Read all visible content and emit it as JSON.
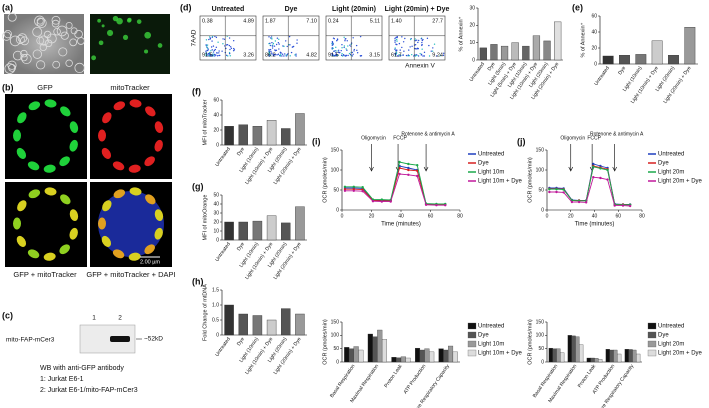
{
  "panels": {
    "a": "(a)",
    "b": "(b)",
    "c": "(c)",
    "d": "(d)"
  },
  "microscopy": {
    "gfp": "GFP",
    "mito": "mitoTracker",
    "merge": "GFP + mitoTracker",
    "merge_dapi": "GFP + mitoTracker + DAPI",
    "scale": "2.00 µm"
  },
  "western": {
    "label": "mito-FAP-mCer3",
    "lanes": [
      "1",
      "2"
    ],
    "size": "~52kD",
    "caption": [
      "WB with anti-GFP antibody",
      "1: Jurkat E6-1",
      "2: Jurkat E6-1/mito-FAP-mCer3"
    ]
  },
  "flow": {
    "y_label": "7AAD",
    "x_label": "Annexin V",
    "plots": [
      {
        "title": "Untreated",
        "quadrants": [
          "0.38",
          "4.89",
          "91.5",
          "3.26"
        ]
      },
      {
        "title": "Dye",
        "quadrants": [
          "1.87",
          "7.10",
          "86.2",
          "4.82"
        ]
      },
      {
        "title": "Light (20min)",
        "quadrants": [
          "0.24",
          "5.11",
          "91.5",
          "3.15"
        ]
      },
      {
        "title": "Light (20min) + Dye",
        "quadrants": [
          "1.40",
          "27.7",
          "61.7",
          "9.24"
        ]
      }
    ]
  },
  "chart_data": [
    {
      "type": "bar",
      "y_label": "% of Annexin⁺",
      "categories": [
        "Untreated",
        "Dye",
        "Light (5min)",
        "Light (5min) + Dye",
        "Light (10min)",
        "Light (10min) + Dye",
        "Light (20min)",
        "Light (20min) + Dye"
      ],
      "values": [
        7,
        9,
        8,
        10,
        8,
        14,
        11,
        22
      ],
      "colors": [
        "#555555",
        "#777777",
        "#999999",
        "#bbbbbb",
        "#666666",
        "#aaaaaa",
        "#888888",
        "#e0e0e0"
      ],
      "ylim": [
        0,
        30
      ],
      "yticks": [
        0,
        10,
        20,
        30
      ]
    },
    {
      "type": "bar",
      "label": "(e)",
      "y_label": "% of Annexin⁺",
      "categories": [
        "Untreated",
        "Dye",
        "Light (10min)",
        "Light (10min) + Dye",
        "Light (20min)",
        "Light (20min) + Dye"
      ],
      "values": [
        10,
        11,
        12,
        29,
        11,
        46
      ],
      "colors": [
        "#333333",
        "#555555",
        "#777777",
        "#cccccc",
        "#555555",
        "#999999"
      ],
      "ylim": [
        0,
        60
      ],
      "yticks": [
        0,
        20,
        40,
        60
      ]
    },
    {
      "type": "bar",
      "label": "(f)",
      "y_label": "MFI of mitoTracker",
      "categories": [
        "Untreated",
        "Dye",
        "Light (10min)",
        "Light (10min) + Dye",
        "Light (20min)",
        "Light (20min) + Dye"
      ],
      "values": [
        25,
        27,
        25,
        33,
        22,
        42
      ],
      "colors": [
        "#333333",
        "#555555",
        "#777777",
        "#cccccc",
        "#555555",
        "#999999"
      ],
      "ylim": [
        0,
        60
      ],
      "yticks": [
        0,
        20,
        40,
        60
      ]
    },
    {
      "type": "bar",
      "label": "(g)",
      "y_label": "MFI of mitoOrange",
      "categories": [
        "Untreated",
        "Dye",
        "Light (10min)",
        "Light (10min) + Dye",
        "Light (20min)",
        "Light (20min) + Dye"
      ],
      "values": [
        20,
        20,
        21,
        27,
        19,
        37
      ],
      "colors": [
        "#333333",
        "#555555",
        "#777777",
        "#cccccc",
        "#555555",
        "#999999"
      ],
      "ylim": [
        0,
        50
      ],
      "yticks": [
        0,
        10,
        20,
        30,
        40,
        50
      ]
    },
    {
      "type": "bar",
      "label": "(h)",
      "y_label": "Fold Change of mtDNA",
      "categories": [
        "Untreated",
        "Dye",
        "Light (10min)",
        "Light (10min) + Dye",
        "Light (20min)",
        "Light (20min) + Dye"
      ],
      "values": [
        1,
        0.7,
        0.65,
        0.5,
        0.88,
        0.7
      ],
      "colors": [
        "#333333",
        "#555555",
        "#777777",
        "#cccccc",
        "#555555",
        "#999999"
      ],
      "ylim": [
        0,
        1.5
      ],
      "yticks": [
        0,
        0.5,
        {
          "value": 1,
          "label": "1.0"
        },
        1.5
      ]
    },
    {
      "type": "line",
      "label": "(i)",
      "y_label": "OCR (pmoles/min)",
      "x_label": "Time (minutes)",
      "x": [
        2,
        8,
        14,
        21,
        27,
        33,
        39,
        45,
        51,
        57,
        64,
        70
      ],
      "xlim": [
        0,
        80
      ],
      "xticks": [
        0,
        20,
        40,
        60,
        80
      ],
      "ylim": [
        0,
        150
      ],
      "yticks": [
        0,
        50,
        100,
        150
      ],
      "annotations": [
        {
          "text": "Oligomycin",
          "x": 20
        },
        {
          "text": "FCCP",
          "x": 38
        },
        {
          "text": "Rotenone & antimycin A",
          "x": 57
        }
      ],
      "series": [
        {
          "name": "Untreated",
          "color": "#1f3fbf",
          "values": [
            55,
            55,
            54,
            25,
            24,
            24,
            110,
            105,
            100,
            15,
            14,
            14
          ]
        },
        {
          "name": "Dye",
          "color": "#d62020",
          "values": [
            52,
            52,
            51,
            24,
            23,
            23,
            105,
            100,
            98,
            14,
            13,
            13
          ]
        },
        {
          "name": "Light 10m",
          "color": "#1aa84a",
          "values": [
            58,
            58,
            57,
            26,
            26,
            25,
            120,
            115,
            112,
            16,
            15,
            15
          ]
        },
        {
          "name": "Light 10m + Dye",
          "color": "#c0189a",
          "values": [
            48,
            48,
            47,
            22,
            21,
            21,
            90,
            88,
            85,
            13,
            12,
            12
          ]
        }
      ]
    },
    {
      "type": "line",
      "label": "(j)",
      "y_label": "OCR (pmoles/min)",
      "x_label": "Time (minutes)",
      "x": [
        2,
        8,
        14,
        21,
        27,
        33,
        39,
        45,
        51,
        57,
        64,
        70
      ],
      "xlim": [
        0,
        80
      ],
      "xticks": [
        0,
        20,
        40,
        60,
        80
      ],
      "ylim": [
        0,
        150
      ],
      "yticks": [
        0,
        50,
        100,
        150
      ],
      "annotations": [
        {
          "text": "Oligomycin",
          "x": 20
        },
        {
          "text": "FCCP",
          "x": 38
        },
        {
          "text": "Rotenone & antimycin A",
          "x": 57
        }
      ],
      "series": [
        {
          "name": "Untreated",
          "color": "#1f3fbf",
          "values": [
            55,
            55,
            54,
            25,
            24,
            24,
            115,
            110,
            105,
            15,
            14,
            14
          ]
        },
        {
          "name": "Dye",
          "color": "#d62020",
          "values": [
            53,
            53,
            52,
            24,
            24,
            23,
            110,
            106,
            102,
            14,
            14,
            13
          ]
        },
        {
          "name": "Light 20m",
          "color": "#1aa84a",
          "values": [
            52,
            52,
            51,
            24,
            23,
            23,
            108,
            104,
            100,
            14,
            13,
            13
          ]
        },
        {
          "name": "Light 20m + Dye",
          "color": "#c0189a",
          "values": [
            45,
            45,
            44,
            20,
            20,
            19,
            82,
            80,
            76,
            11,
            11,
            10
          ]
        }
      ]
    },
    {
      "type": "bar",
      "y_label": "OCR (pmoles/min)",
      "categories": [
        "Basal Respiration",
        "Maximal Respiration",
        "Proton Leak",
        "ATP Production",
        "Spare Respiratory Capacity"
      ],
      "ylim": [
        0,
        150
      ],
      "yticks": [
        0,
        50,
        100,
        150
      ],
      "series": [
        {
          "name": "Untreated",
          "color": "#111111",
          "values": [
            55,
            105,
            18,
            52,
            50
          ]
        },
        {
          "name": "Dye",
          "color": "#555555",
          "values": [
            50,
            95,
            16,
            45,
            45
          ]
        },
        {
          "name": "Light 10m",
          "color": "#999999",
          "values": [
            58,
            120,
            20,
            50,
            60
          ]
        },
        {
          "name": "Light 10m + Dye",
          "color": "#dddddd",
          "values": [
            45,
            85,
            15,
            38,
            38
          ]
        }
      ]
    },
    {
      "type": "bar",
      "y_label": "OCR (pmoles/min)",
      "categories": [
        "Basal Respiration",
        "Maximal Respiration",
        "Proton Leak",
        "ATP Production",
        "Spare Respiratory Capacity"
      ],
      "ylim": [
        0,
        150
      ],
      "yticks": [
        0,
        50,
        100,
        150
      ],
      "series": [
        {
          "name": "Untreated",
          "color": "#111111",
          "values": [
            52,
            100,
            15,
            48,
            48
          ]
        },
        {
          "name": "Dye",
          "color": "#555555",
          "values": [
            50,
            98,
            15,
            45,
            47
          ]
        },
        {
          "name": "Light 20m",
          "color": "#999999",
          "values": [
            50,
            95,
            14,
            45,
            45
          ]
        },
        {
          "name": "Light 20m + Dye",
          "color": "#dddddd",
          "values": [
            35,
            65,
            10,
            30,
            30
          ]
        }
      ]
    }
  ]
}
